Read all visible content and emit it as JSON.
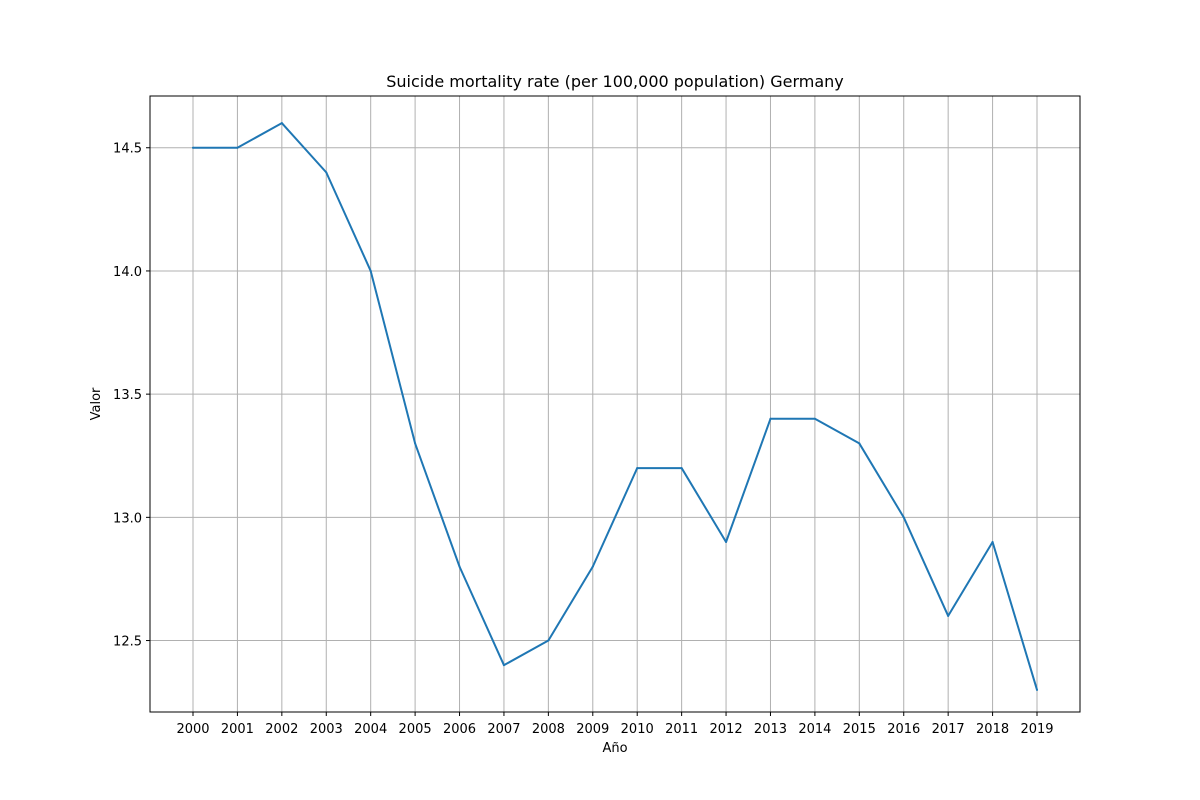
{
  "chart_data": {
    "type": "line",
    "title": "Suicide mortality rate (per 100,000 population) Germany",
    "xlabel": "Año",
    "ylabel": "Valor",
    "categories": [
      "2000",
      "2001",
      "2002",
      "2003",
      "2004",
      "2005",
      "2006",
      "2007",
      "2008",
      "2009",
      "2010",
      "2011",
      "2012",
      "2013",
      "2014",
      "2015",
      "2016",
      "2017",
      "2018",
      "2019"
    ],
    "series": [
      {
        "name": "Germany",
        "values": [
          14.5,
          14.5,
          14.6,
          14.4,
          14.0,
          13.3,
          12.8,
          12.4,
          12.5,
          12.8,
          13.2,
          13.2,
          12.9,
          13.4,
          13.4,
          13.3,
          13.0,
          12.6,
          12.9,
          12.3
        ]
      }
    ],
    "ylim": [
      12.21,
      14.71
    ],
    "yticks": [
      12.5,
      13.0,
      13.5,
      14.0,
      14.5
    ],
    "ytick_labels": [
      "12.5",
      "13.0",
      "13.5",
      "14.0",
      "14.5"
    ],
    "grid": true,
    "line_color": "#1f77b4",
    "grid_color": "#b0b0b0"
  }
}
